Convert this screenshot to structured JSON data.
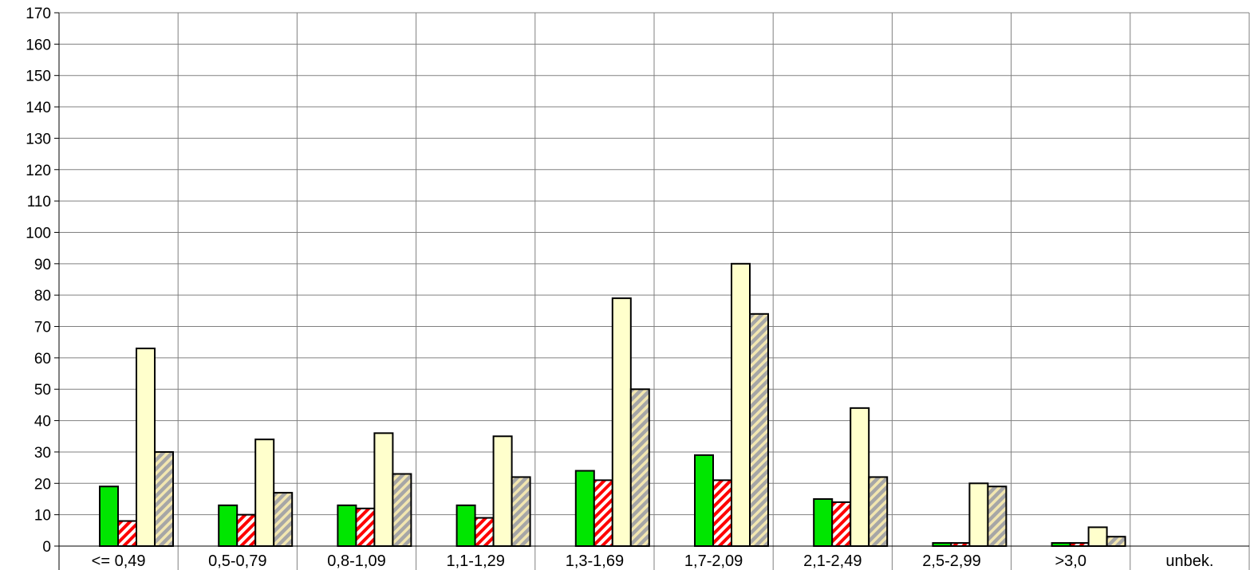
{
  "chart_data": {
    "type": "bar",
    "categories": [
      "<= 0,49",
      "0,5-0,79",
      "0,8-1,09",
      "1,1-1,29",
      "1,3-1,69",
      "1,7-2,09",
      "2,1-2,49",
      "2,5-2,99",
      ">3,0",
      "unbek."
    ],
    "series": [
      {
        "color": "#00e600",
        "pattern": "solid",
        "values": [
          19,
          13,
          13,
          13,
          24,
          29,
          15,
          1,
          1,
          0
        ]
      },
      {
        "color": "#ff0000",
        "pattern": "red-white-diagonal-stripes",
        "values": [
          8,
          10,
          12,
          9,
          21,
          21,
          14,
          1,
          1,
          0
        ]
      },
      {
        "color": "#ffffcc",
        "pattern": "solid",
        "values": [
          63,
          34,
          36,
          35,
          79,
          90,
          44,
          20,
          6,
          0
        ]
      },
      {
        "color": "#a6a6a6",
        "pattern": "grey-beige-diagonal-stripes",
        "values": [
          30,
          17,
          23,
          22,
          50,
          74,
          22,
          19,
          3,
          0
        ]
      }
    ],
    "ylim": [
      0,
      170
    ],
    "ytick_step": 10,
    "yticks": [
      "0",
      "10",
      "20",
      "30",
      "40",
      "50",
      "60",
      "70",
      "80",
      "90",
      "100",
      "110",
      "120",
      "130",
      "140",
      "150",
      "160",
      "170"
    ],
    "grid": true,
    "legend": "none"
  }
}
